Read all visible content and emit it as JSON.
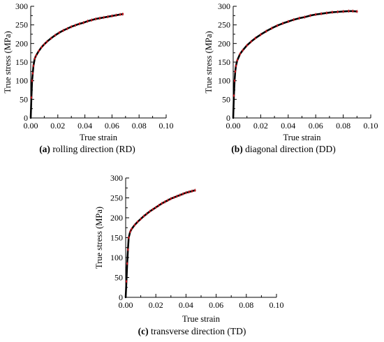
{
  "chart_data": [
    {
      "type": "line",
      "caption_letter": "(a)",
      "caption_text": " rolling direction (RD)",
      "xlabel": "True strain",
      "ylabel": "True stress (MPa)",
      "xlim": [
        0,
        0.1
      ],
      "ylim": [
        0,
        300
      ],
      "xticks": [
        "0.00",
        "0.02",
        "0.04",
        "0.06",
        "0.08",
        "0.10"
      ],
      "yticks": [
        "0",
        "50",
        "100",
        "150",
        "200",
        "250",
        "300"
      ],
      "grid": false,
      "line_color": "#000000",
      "marker_color": "#e0141e",
      "series": [
        {
          "x": [
            0.0,
            0.0005,
            0.001,
            0.0015,
            0.002,
            0.003,
            0.004,
            0.006,
            0.008,
            0.01,
            0.012,
            0.015,
            0.018,
            0.021,
            0.024,
            0.027,
            0.03,
            0.033,
            0.036,
            0.039,
            0.042,
            0.045,
            0.048,
            0.051,
            0.054,
            0.057,
            0.06,
            0.063,
            0.066,
            0.068
          ],
          "y": [
            0,
            55,
            100,
            120,
            140,
            160,
            168,
            180,
            190,
            198,
            205,
            214,
            222,
            229,
            235,
            240,
            245,
            249,
            253,
            256,
            260,
            263,
            266,
            268,
            270,
            272,
            274,
            276,
            278,
            279
          ]
        }
      ]
    },
    {
      "type": "line",
      "caption_letter": "(b)",
      "caption_text": " diagonal direction (DD)",
      "xlabel": "True strain",
      "ylabel": "True stress (MPa)",
      "xlim": [
        0,
        0.1
      ],
      "ylim": [
        0,
        300
      ],
      "xticks": [
        "0.00",
        "0.02",
        "0.04",
        "0.06",
        "0.08",
        "0.10"
      ],
      "yticks": [
        "0",
        "50",
        "100",
        "150",
        "200",
        "250",
        "300"
      ],
      "grid": false,
      "line_color": "#000000",
      "marker_color": "#e0141e",
      "series": [
        {
          "x": [
            0.0,
            0.0005,
            0.001,
            0.0015,
            0.002,
            0.003,
            0.005,
            0.007,
            0.01,
            0.013,
            0.016,
            0.02,
            0.024,
            0.028,
            0.032,
            0.036,
            0.04,
            0.044,
            0.048,
            0.052,
            0.056,
            0.06,
            0.064,
            0.068,
            0.072,
            0.076,
            0.08,
            0.084,
            0.087,
            0.09
          ],
          "y": [
            0,
            60,
            100,
            125,
            140,
            155,
            172,
            182,
            195,
            205,
            214,
            224,
            233,
            241,
            248,
            254,
            259,
            264,
            268,
            271,
            275,
            278,
            280,
            282,
            284,
            285,
            286,
            287,
            287,
            286
          ]
        }
      ]
    },
    {
      "type": "line",
      "caption_letter": "(c)",
      "caption_text": " transverse direction (TD)",
      "xlabel": "True strain",
      "ylabel": "True stress (MPa)",
      "xlim": [
        0,
        0.1
      ],
      "ylim": [
        0,
        300
      ],
      "xticks": [
        "0.00",
        "0.02",
        "0.04",
        "0.06",
        "0.08",
        "0.10"
      ],
      "yticks": [
        "0",
        "50",
        "100",
        "150",
        "200",
        "250",
        "300"
      ],
      "grid": false,
      "line_color": "#000000",
      "marker_color": "#e0141e",
      "series": [
        {
          "x": [
            0.0,
            0.0005,
            0.001,
            0.0015,
            0.002,
            0.003,
            0.004,
            0.006,
            0.008,
            0.01,
            0.012,
            0.014,
            0.016,
            0.018,
            0.02,
            0.022,
            0.024,
            0.026,
            0.028,
            0.03,
            0.032,
            0.034,
            0.036,
            0.038,
            0.04,
            0.042,
            0.044,
            0.046
          ],
          "y": [
            0,
            40,
            85,
            120,
            150,
            165,
            172,
            182,
            190,
            197,
            204,
            210,
            216,
            221,
            226,
            231,
            236,
            240,
            244,
            248,
            251,
            254,
            257,
            260,
            263,
            265,
            267,
            269
          ]
        }
      ]
    }
  ]
}
